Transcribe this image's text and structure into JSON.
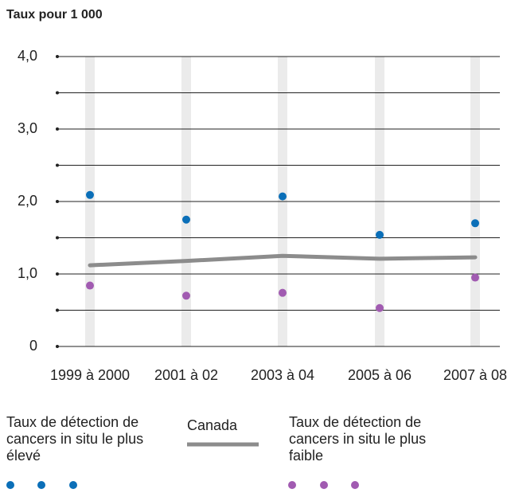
{
  "chart_data": {
    "type": "line",
    "y_axis_title": "Taux pour 1 000",
    "categories": [
      "1999 à 2000",
      "2001 à 02",
      "2003 à 04",
      "2005 à 06",
      "2007 à 08"
    ],
    "series": [
      {
        "name": "Taux de détection de cancers in situ le plus élevé",
        "color": "#0b6fb8",
        "style": "dots",
        "values": [
          2.09,
          1.75,
          2.07,
          1.54,
          1.7
        ]
      },
      {
        "name": "Canada",
        "color": "#8c8c8c",
        "style": "line",
        "values": [
          1.12,
          1.18,
          1.25,
          1.21,
          1.23
        ]
      },
      {
        "name": "Taux de détection de cancers in situ le plus faible",
        "color": "#a15bb1",
        "style": "dots",
        "values": [
          0.84,
          0.7,
          0.74,
          0.53,
          0.95
        ]
      }
    ],
    "ylim": [
      0,
      4
    ],
    "yticks": [
      0,
      {
        "value": 1,
        "label": "1,0"
      },
      {
        "value": 2,
        "label": "2,0"
      },
      {
        "value": 3,
        "label": "3,0"
      },
      {
        "value": 4,
        "label": "4,0"
      }
    ],
    "minor_yticks": [
      0.5,
      1.5,
      2.5,
      3.5
    ],
    "grid": true,
    "legend": "bottom"
  }
}
